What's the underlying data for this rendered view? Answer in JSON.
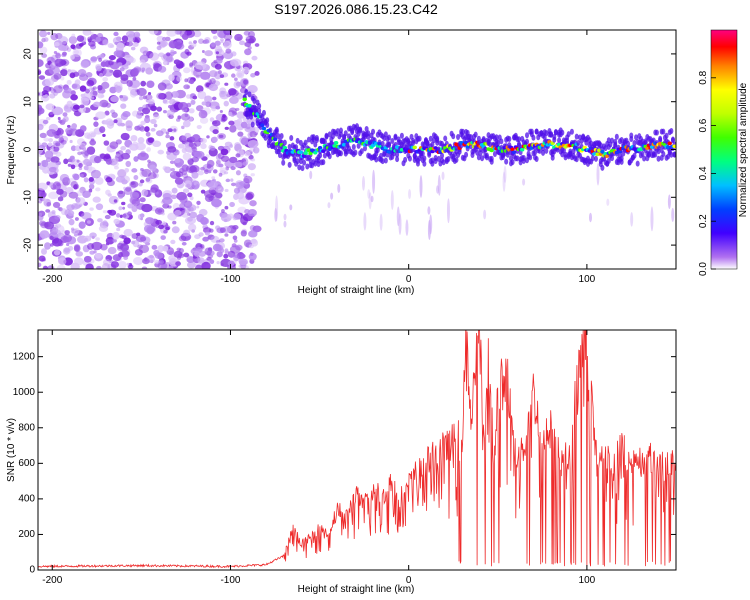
{
  "chart_data": [
    {
      "type": "heatmap",
      "title": "S197.2026.086.15.23.C42",
      "xlabel": "Height of straight line (km)",
      "ylabel": "Frequency (Hz)",
      "xlim": [
        -208,
        150
      ],
      "ylim": [
        -25,
        25
      ],
      "xticks": [
        -200,
        -100,
        0,
        100
      ],
      "yticks": [
        -20,
        -10,
        0,
        10,
        20
      ],
      "colorbar": {
        "label": "Normalized spectral amplitude",
        "range": [
          0,
          1
        ],
        "ticks": [
          "0.0",
          "0.2",
          "0.4",
          "0.6",
          "0.8"
        ],
        "colors": [
          "#ffffff",
          "#b070f0",
          "#4000ff",
          "#0040ff",
          "#00c0ff",
          "#00ff80",
          "#40ff00",
          "#c0ff00",
          "#ffff00",
          "#ff8000",
          "#ff0000",
          "#ff0080"
        ]
      },
      "ridge": {
        "description": "frequency of peak amplitude vs height",
        "x": [
          -92,
          -85,
          -80,
          -75,
          -70,
          -60,
          -50,
          -40,
          -30,
          -20,
          -10,
          0,
          10,
          20,
          30,
          40,
          50,
          60,
          70,
          80,
          90,
          100,
          110,
          120,
          130,
          140,
          150
        ],
        "freq": [
          10,
          7,
          4,
          2,
          0,
          -1,
          0,
          1,
          2,
          1,
          0,
          0,
          0,
          0,
          1,
          1,
          0,
          0,
          1,
          1,
          1,
          0,
          -1,
          0,
          0,
          1,
          1
        ]
      }
    },
    {
      "type": "line",
      "xlabel": "Height of straight line (km)",
      "ylabel": "SNR (10 * v/v)",
      "xlim": [
        -208,
        150
      ],
      "ylim": [
        0,
        1350
      ],
      "xticks": [
        -200,
        -100,
        0,
        100
      ],
      "yticks": [
        0,
        200,
        400,
        600,
        800,
        1000,
        1200
      ],
      "color": "#ee2b2b",
      "series": [
        {
          "name": "SNR",
          "x": [
            -208,
            -150,
            -100,
            -80,
            -70,
            -65,
            -60,
            -55,
            -50,
            -45,
            -40,
            -35,
            -30,
            -25,
            -20,
            -15,
            -10,
            -5,
            0,
            5,
            10,
            15,
            20,
            25,
            30,
            32,
            35,
            38,
            40,
            42,
            45,
            48,
            50,
            55,
            60,
            65,
            70,
            75,
            80,
            85,
            90,
            95,
            100,
            105,
            110,
            115,
            120,
            125,
            130,
            135,
            140,
            145,
            150
          ],
          "values": [
            20,
            25,
            20,
            30,
            80,
            230,
            150,
            180,
            250,
            200,
            340,
            300,
            420,
            380,
            450,
            420,
            500,
            400,
            480,
            560,
            600,
            640,
            700,
            720,
            760,
            1300,
            900,
            1240,
            1340,
            700,
            1200,
            600,
            1000,
            1100,
            650,
            700,
            1000,
            720,
            800,
            680,
            600,
            1100,
            1330,
            650,
            640,
            600,
            700,
            600,
            620,
            640,
            610,
            600,
            620
          ]
        }
      ]
    }
  ]
}
